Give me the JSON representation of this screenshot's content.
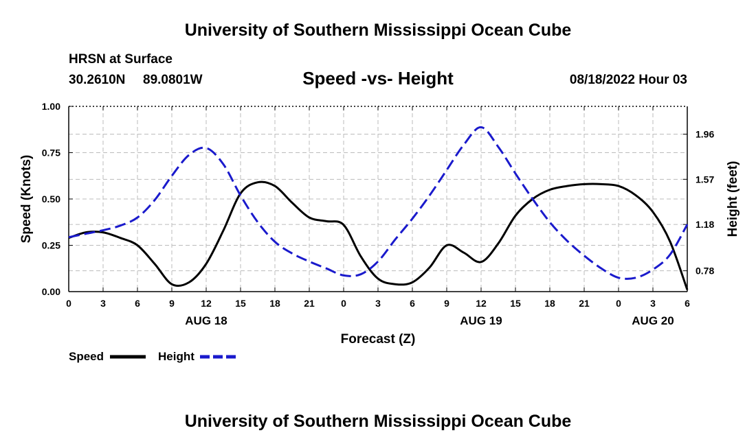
{
  "page_title": "University of Southern Mississippi Ocean Cube",
  "footer_title": "University of Southern Mississippi Ocean Cube",
  "station": {
    "name": "HRSN at Surface",
    "lat": "30.2610N",
    "lon": "89.0801W",
    "timestamp": "08/18/2022 Hour 03"
  },
  "colors": {
    "speed": "#000000",
    "height": "#1a1acc",
    "grid": "#bbbbbb"
  },
  "chart_data": {
    "type": "line",
    "title": "Speed -vs- Height",
    "xlabel": "Forecast (Z)",
    "ylabel_left": "Speed (Knots)",
    "ylabel_right": "Height (feet)",
    "x_hours_range": [
      0,
      54
    ],
    "x_tick_step_hours": 3,
    "x_tick_labels": [
      "0",
      "3",
      "6",
      "9",
      "12",
      "15",
      "18",
      "21",
      "0",
      "3",
      "6",
      "9",
      "12",
      "15",
      "18",
      "21",
      "0",
      "3",
      "6"
    ],
    "date_labels": [
      {
        "label": "AUG 18",
        "hour": 12
      },
      {
        "label": "AUG 19",
        "hour": 36
      },
      {
        "label": "AUG 20",
        "hour": 51
      }
    ],
    "ylim_left": [
      0,
      1
    ],
    "yticks_left": [
      "0.00",
      "0.25",
      "0.50",
      "0.75",
      "1.00"
    ],
    "ylim_right": [
      0.6,
      2.2
    ],
    "yticks_right": [
      "0.78",
      "1.18",
      "1.57",
      "1.96"
    ],
    "grid": true,
    "legend": [
      {
        "name": "Speed",
        "style": "solid"
      },
      {
        "name": "Height",
        "style": "dashed"
      }
    ],
    "series": [
      {
        "name": "Speed",
        "axis": "left",
        "x": [
          0,
          1.5,
          3,
          4.5,
          6,
          7.5,
          9,
          10.5,
          12,
          13.5,
          15,
          16.5,
          18,
          19.5,
          21,
          22.5,
          24,
          25.5,
          27,
          28.5,
          30,
          31.5,
          33,
          34.5,
          36,
          37.5,
          39,
          40.5,
          42,
          43.5,
          45,
          46.5,
          48,
          49.5,
          51,
          52.5,
          54
        ],
        "values": [
          0.29,
          0.32,
          0.32,
          0.29,
          0.25,
          0.15,
          0.04,
          0.05,
          0.15,
          0.33,
          0.53,
          0.59,
          0.57,
          0.48,
          0.4,
          0.38,
          0.36,
          0.19,
          0.07,
          0.04,
          0.05,
          0.13,
          0.25,
          0.21,
          0.16,
          0.26,
          0.41,
          0.5,
          0.55,
          0.57,
          0.58,
          0.58,
          0.57,
          0.52,
          0.43,
          0.27,
          0.01
        ]
      },
      {
        "name": "Height",
        "axis": "right",
        "x": [
          0,
          1.5,
          3,
          4.5,
          6,
          7.5,
          9,
          10.5,
          12,
          13.5,
          15,
          16.5,
          18,
          19.5,
          21,
          22.5,
          24,
          25.5,
          27,
          28.5,
          30,
          31.5,
          33,
          34.5,
          36,
          37.5,
          39,
          40.5,
          42,
          43.5,
          45,
          46.5,
          48,
          49.5,
          51,
          52.5,
          54
        ],
        "values": [
          1.07,
          1.1,
          1.13,
          1.17,
          1.24,
          1.39,
          1.6,
          1.78,
          1.84,
          1.7,
          1.43,
          1.2,
          1.03,
          0.93,
          0.86,
          0.8,
          0.74,
          0.75,
          0.86,
          1.05,
          1.23,
          1.43,
          1.65,
          1.87,
          2.02,
          1.85,
          1.62,
          1.4,
          1.2,
          1.04,
          0.91,
          0.8,
          0.72,
          0.72,
          0.79,
          0.92,
          1.18
        ]
      }
    ]
  }
}
